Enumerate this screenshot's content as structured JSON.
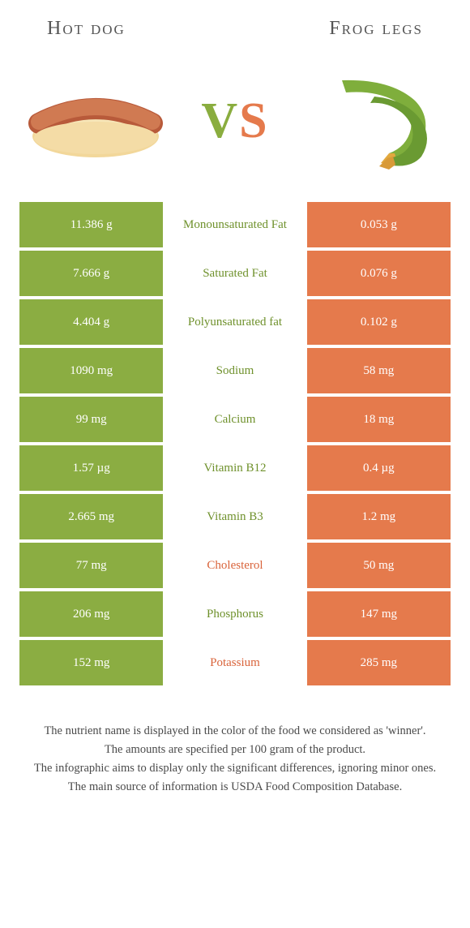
{
  "colors": {
    "green": "#8bad42",
    "orange": "#e57a4c",
    "green_text": "#6f912c",
    "orange_text": "#d9633a"
  },
  "header": {
    "left_title": "Hot dog",
    "right_title": "Frog legs",
    "vs": {
      "v": "V",
      "s": "S"
    }
  },
  "rows": [
    {
      "left": "11.386 g",
      "label": "Monounsaturated Fat",
      "right": "0.053 g",
      "winner": "left"
    },
    {
      "left": "7.666 g",
      "label": "Saturated Fat",
      "right": "0.076 g",
      "winner": "left"
    },
    {
      "left": "4.404 g",
      "label": "Polyunsaturated fat",
      "right": "0.102 g",
      "winner": "left"
    },
    {
      "left": "1090 mg",
      "label": "Sodium",
      "right": "58 mg",
      "winner": "left"
    },
    {
      "left": "99 mg",
      "label": "Calcium",
      "right": "18 mg",
      "winner": "left"
    },
    {
      "left": "1.57 µg",
      "label": "Vitamin B12",
      "right": "0.4 µg",
      "winner": "left"
    },
    {
      "left": "2.665 mg",
      "label": "Vitamin B3",
      "right": "1.2 mg",
      "winner": "left"
    },
    {
      "left": "77 mg",
      "label": "Cholesterol",
      "right": "50 mg",
      "winner": "right"
    },
    {
      "left": "206 mg",
      "label": "Phosphorus",
      "right": "147 mg",
      "winner": "left"
    },
    {
      "left": "152 mg",
      "label": "Potassium",
      "right": "285 mg",
      "winner": "right"
    }
  ],
  "footer": {
    "line1": "The nutrient name is displayed in the color of the food we considered as 'winner'.",
    "line2": "The amounts are specified per 100 gram of the product.",
    "line3": "The infographic aims to display only the significant differences, ignoring minor ones.",
    "line4": "The main source of information is USDA Food Composition Database."
  }
}
